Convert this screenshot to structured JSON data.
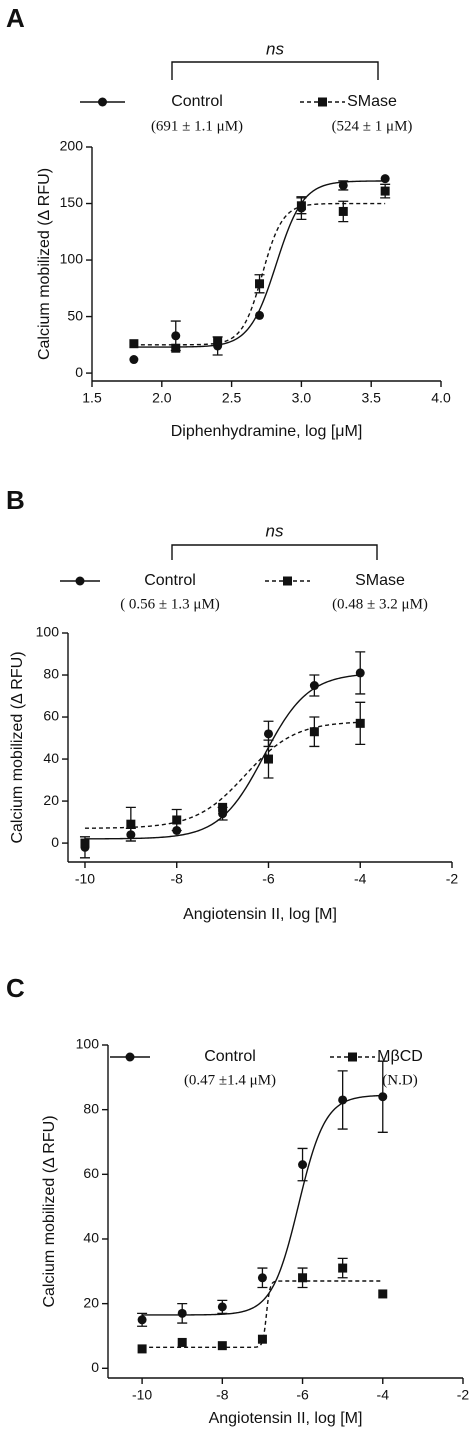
{
  "chart_data": [
    {
      "type": "scatter",
      "panel": "A",
      "annotation": "ns",
      "x_label": "Diphenhydramine, log [μM]",
      "y_label": "Calcium mobilized (Δ RFU)",
      "x": [
        1.8,
        2.1,
        2.4,
        2.7,
        3.0,
        3.3,
        3.6
      ],
      "series": [
        {
          "name": "Control",
          "note": "(691 ± 1.1 μM)",
          "color": "#111111",
          "marker": "circle",
          "line_style": "solid",
          "values": [
            12,
            33,
            24,
            51,
            146,
            166,
            172
          ],
          "errors": [
            null,
            13,
            8,
            null,
            10,
            4,
            null
          ],
          "fit": {
            "bottom": 23,
            "top": 170,
            "x50": 2.82,
            "hill": 4.5
          }
        },
        {
          "name": "SMase",
          "note": "(524 ± 1 μM)",
          "color": "#111111",
          "marker": "square",
          "line_style": "dashed",
          "values": [
            26,
            22,
            28,
            79,
            148,
            143,
            161
          ],
          "errors": [
            null,
            null,
            null,
            8,
            7,
            9,
            6
          ],
          "fit": {
            "bottom": 25,
            "top": 150,
            "x50": 2.72,
            "hill": 6
          }
        }
      ],
      "xlim": [
        1.5,
        4.0
      ],
      "ylim": [
        -7,
        200
      ],
      "xticks": [
        1.5,
        {
          "value": 2,
          "label": "2.0"
        },
        2.5,
        {
          "value": 3,
          "label": "3.0"
        },
        3.5,
        {
          "value": 4,
          "label": "4.0"
        }
      ],
      "yticks": [
        0,
        50,
        100,
        150,
        200
      ]
    },
    {
      "type": "scatter",
      "panel": "B",
      "annotation": "ns",
      "x_label": "Angiotensin II, log [M]",
      "y_label": "Calcium mobilized (Δ RFU)",
      "x": [
        -10,
        -9,
        -8,
        -7,
        -6,
        -5,
        -4
      ],
      "series": [
        {
          "name": "Control",
          "note": "( 0.56 ± 1.3 μM)",
          "color": "#111111",
          "marker": "circle",
          "line_style": "solid",
          "values": [
            -2,
            4,
            6,
            14,
            52,
            75,
            81
          ],
          "errors": [
            5,
            3,
            null,
            3,
            6,
            5,
            10
          ],
          "fit": {
            "bottom": 2,
            "top": 81,
            "x50": -6.1,
            "hill": 0.9
          }
        },
        {
          "name": "SMase",
          "note": "(0.48 ± 3.2 μM)",
          "color": "#111111",
          "marker": "square",
          "line_style": "dashed",
          "values": [
            0,
            9,
            11,
            17,
            40,
            53,
            57
          ],
          "errors": [
            null,
            8,
            5,
            null,
            9,
            7,
            10
          ],
          "fit": {
            "bottom": 7,
            "top": 58,
            "x50": -6.5,
            "hill": 0.8
          }
        }
      ],
      "xlim": [
        -10.37,
        -2
      ],
      "ylim": [
        -9,
        100
      ],
      "xticks": [
        -10,
        -8,
        -6,
        -4,
        -2
      ],
      "yticks": [
        0,
        20,
        40,
        60,
        80,
        100
      ]
    },
    {
      "type": "scatter",
      "panel": "C",
      "x_label": "Angiotensin II, log [M]",
      "y_label": "Calcium mobilized (Δ RFU)",
      "x": [
        -10,
        -9,
        -8,
        -7,
        -6,
        -5,
        -4
      ],
      "series": [
        {
          "name": "Control",
          "note": "(0.47 ±1.4 μM)",
          "color": "#111111",
          "marker": "circle",
          "line_style": "solid",
          "values": [
            15,
            17,
            19,
            28,
            63,
            83,
            84
          ],
          "errors": [
            2,
            3,
            2,
            3,
            5,
            9,
            11
          ],
          "fit": {
            "bottom": 16.5,
            "top": 84.5,
            "x50": -6.1,
            "hill": 1.3
          }
        },
        {
          "name": "MβCD",
          "note": "(N.D)",
          "color": "#111111",
          "marker": "square",
          "line_style": "dashed",
          "values": [
            6,
            8,
            7,
            9,
            28,
            31,
            23
          ],
          "errors": [
            null,
            null,
            null,
            null,
            3,
            3,
            null
          ],
          "fit": {
            "bottom": 6.5,
            "top": 27,
            "x50": -6.9,
            "hill": 10
          }
        }
      ],
      "xlim": [
        -10.85,
        -2
      ],
      "ylim": [
        -3,
        100
      ],
      "xticks": [
        -10,
        -8,
        -6,
        -4,
        -2
      ],
      "yticks": [
        0,
        20,
        40,
        60,
        80,
        100
      ]
    }
  ]
}
